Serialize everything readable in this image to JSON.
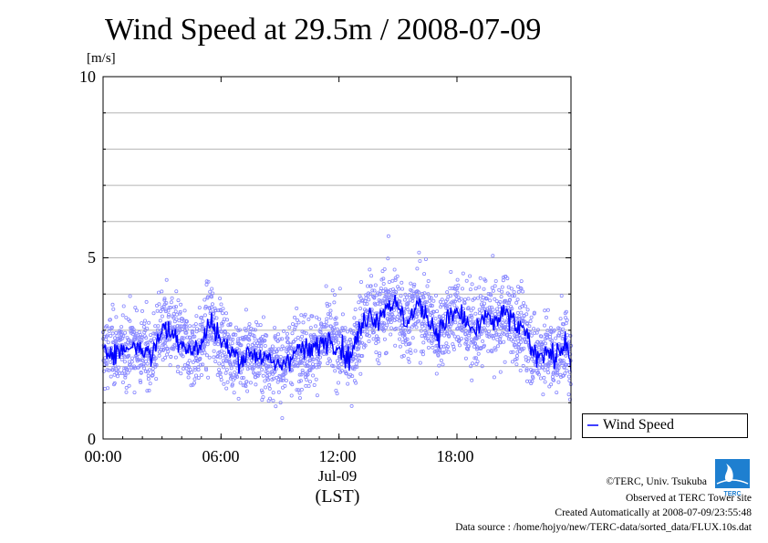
{
  "chart_data": {
    "type": "scatter",
    "title": "Wind Speed at 29.5m / 2008-07-09",
    "ylabel": "[m/s]",
    "xlabel": "(LST)",
    "date_label": "Jul-09",
    "ylim": [
      0,
      10
    ],
    "xlim_hours": [
      0,
      23.8
    ],
    "y_ticks": [
      "0",
      "5",
      "10"
    ],
    "x_ticks": [
      {
        "hour": 0,
        "label": "00:00"
      },
      {
        "hour": 6,
        "label": "06:00"
      },
      {
        "hour": 12,
        "label": "12:00"
      },
      {
        "hour": 18,
        "label": "18:00"
      }
    ],
    "y_gridlines": [
      1,
      2,
      3,
      4,
      5,
      6,
      7,
      8,
      9
    ],
    "legend": {
      "placement": "bottom-right",
      "label": "Wind Speed"
    },
    "series": [
      {
        "name": "Wind Speed",
        "color": "#0000ff",
        "point_color": "#8888ff",
        "hours": [
          0,
          0.5,
          1,
          1.5,
          2,
          2.5,
          3,
          3.5,
          4,
          4.5,
          5,
          5.5,
          6,
          6.5,
          7,
          7.5,
          8,
          8.5,
          9,
          9.5,
          10,
          10.5,
          11,
          11.5,
          12,
          12.5,
          13,
          13.5,
          14,
          14.5,
          15,
          15.5,
          16,
          16.5,
          17,
          17.5,
          18,
          18.5,
          19,
          19.5,
          20,
          20.5,
          21,
          21.5,
          22,
          22.5,
          23,
          23.5,
          23.8
        ],
        "values": [
          2.3,
          2.5,
          2.4,
          2.6,
          2.5,
          2.3,
          3.1,
          2.9,
          2.7,
          2.4,
          2.6,
          3.3,
          2.7,
          2.4,
          2.2,
          2.4,
          2.3,
          2.1,
          2.0,
          2.3,
          2.5,
          2.4,
          2.6,
          2.8,
          2.6,
          2.2,
          2.9,
          3.5,
          3.3,
          3.8,
          3.6,
          3.2,
          3.7,
          3.4,
          2.9,
          3.3,
          3.5,
          3.2,
          2.9,
          3.4,
          3.2,
          3.5,
          3.1,
          2.9,
          2.3,
          2.5,
          2.2,
          2.7,
          1.9
        ]
      }
    ]
  },
  "footer": {
    "copyright": "©TERC, Univ. Tsukuba",
    "observed": "Observed at TERC Tower site",
    "created": "Created Automatically at 2008-07-09/23:55:48",
    "source": "Data source : /home/hojyo/new/TERC-data/sorted_data/FLUX.10s.dat"
  },
  "logo": {
    "name": "terc-logo",
    "text": "TERC",
    "color": "#1e7fd0"
  }
}
